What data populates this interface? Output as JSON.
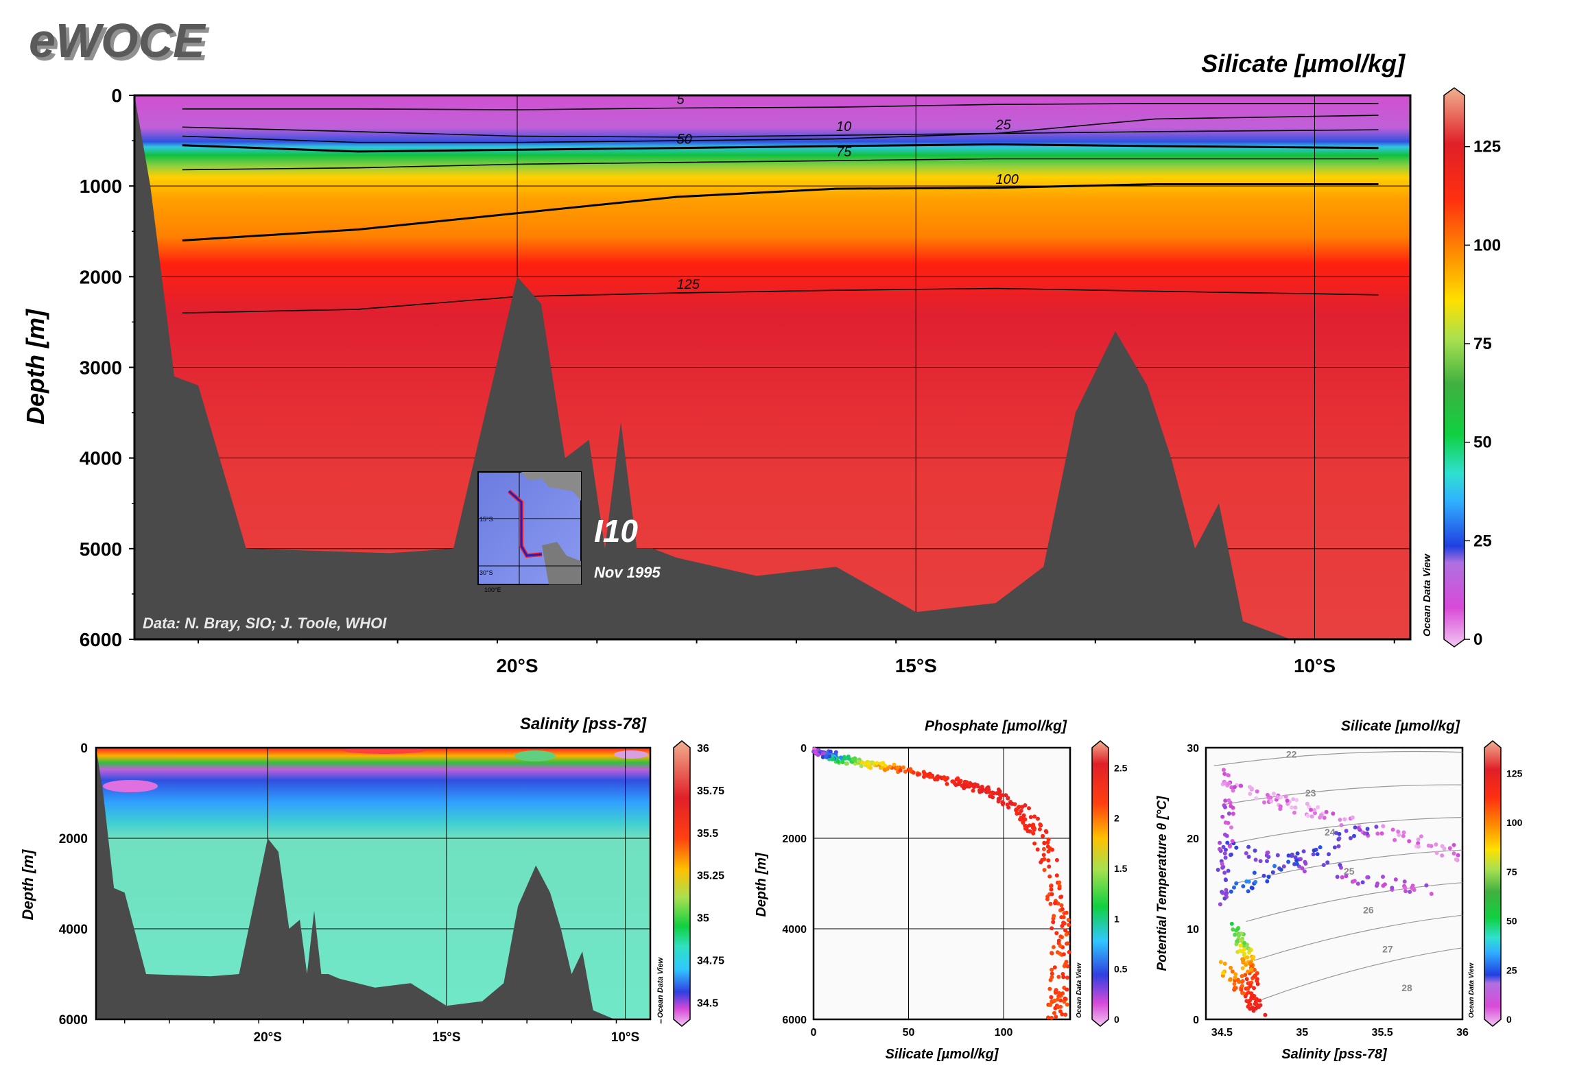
{
  "logo": "eWOCE",
  "main": {
    "title": "Silicate [µmol/kg]",
    "ylabel": "Depth [m]",
    "credit": "Data: N. Bray, SIO; J. Toole, WHOI",
    "section_label": "I10",
    "date_label": "Nov 1995",
    "odv": "Ocean Data View",
    "inset_labels": [
      "15°S",
      "30°S",
      "100°E"
    ]
  },
  "salinity": {
    "title": "Salinity [pss-78]",
    "ylabel": "Depth [m]",
    "odv": "Ocean Data View"
  },
  "phosphate": {
    "title": "Phosphate [µmol/kg]",
    "xlabel": "Silicate [µmol/kg]",
    "ylabel": "Depth [m]",
    "odv": "Ocean Data View"
  },
  "ts": {
    "title": "Silicate [µmol/kg]",
    "xlabel": "Salinity [pss-78]",
    "ylabel": "Potential Temperature θ [°C]",
    "odv": "Ocean Data View",
    "isopycnal_labels": [
      "22",
      "23",
      "24",
      "25",
      "26",
      "27",
      "28"
    ]
  },
  "colors": {
    "seafloor": "#4a4a4a",
    "frame": "#000000"
  },
  "chart_data": [
    {
      "type": "heatmap",
      "title": "Silicate [µmol/kg]",
      "ylabel": "Depth [m]",
      "x_ticks": [
        "20°S",
        "15°S",
        "10°S"
      ],
      "x_tick_values": [
        -20,
        -15,
        -10
      ],
      "xlim": [
        -24.8,
        -8.8
      ],
      "y_ticks": [
        0,
        1000,
        2000,
        3000,
        4000,
        5000,
        6000
      ],
      "ylim": [
        6000,
        0
      ],
      "colorbar": {
        "range": [
          0,
          138
        ],
        "ticks": [
          0,
          25,
          50,
          75,
          100,
          125
        ]
      },
      "contours": [
        {
          "value": 5,
          "depth": [
            150,
            150,
            160,
            140,
            130,
            100,
            90,
            90
          ]
        },
        {
          "value": 10,
          "depth": [
            350,
            400,
            450,
            460,
            440,
            420,
            400,
            380
          ]
        },
        {
          "value": 25,
          "depth": [
            450,
            520,
            520,
            500,
            480,
            420,
            260,
            220
          ]
        },
        {
          "value": 50,
          "depth": [
            550,
            620,
            600,
            580,
            560,
            540,
            560,
            580
          ]
        },
        {
          "value": 75,
          "depth": [
            820,
            800,
            760,
            740,
            720,
            700,
            700,
            700
          ]
        },
        {
          "value": 100,
          "depth": [
            1600,
            1480,
            1300,
            1120,
            1030,
            1020,
            980,
            980
          ]
        },
        {
          "value": 125,
          "depth": [
            2400,
            2360,
            2220,
            2180,
            2150,
            2130,
            2160,
            2200
          ]
        }
      ],
      "contour_x": [
        -24.2,
        -22,
        -20,
        -18,
        -16,
        -14,
        -12,
        -9.2
      ],
      "bathymetry": {
        "lat": [
          -24.8,
          -24.6,
          -24.3,
          -24,
          -23.4,
          -21.6,
          -20.8,
          -20.4,
          -20,
          -19.7,
          -19.4,
          -19.1,
          -18.9,
          -18.7,
          -18.5,
          -18.3,
          -18,
          -17,
          -16,
          -15,
          -14,
          -13.4,
          -13,
          -12.5,
          -12.1,
          -11.8,
          -11.5,
          -11.2,
          -10.9,
          -10.6,
          -10.3,
          -10,
          -9.5,
          -8.8
        ],
        "depth": [
          0,
          1000,
          3100,
          3200,
          5000,
          5050,
          5000,
          3500,
          2000,
          2300,
          4000,
          3800,
          5000,
          3600,
          5000,
          5000,
          5100,
          5300,
          5200,
          5700,
          5600,
          5200,
          3500,
          2600,
          3200,
          4000,
          5000,
          4500,
          5800,
          5900,
          6000,
          6000,
          6000,
          6000
        ]
      }
    },
    {
      "type": "heatmap",
      "title": "Salinity [pss-78]",
      "ylabel": "Depth [m]",
      "x_ticks": [
        "20°S",
        "15°S",
        "10°S"
      ],
      "x_tick_values": [
        -20,
        -15,
        -10
      ],
      "y_ticks": [
        0,
        2000,
        4000,
        6000
      ],
      "ylim": [
        6000,
        0
      ],
      "colorbar": {
        "range": [
          34.4,
          36.0
        ],
        "ticks": [
          34.5,
          34.75,
          35,
          35.25,
          35.5,
          35.75,
          36
        ]
      }
    },
    {
      "type": "scatter",
      "title": "Phosphate [µmol/kg]",
      "xlabel": "Silicate [µmol/kg]",
      "ylabel": "Depth [m]",
      "x_ticks": [
        0,
        50,
        100
      ],
      "xlim": [
        0,
        135
      ],
      "y_ticks": [
        0,
        2000,
        4000,
        6000
      ],
      "ylim": [
        6000,
        0
      ],
      "color_variable": "Phosphate",
      "colorbar": {
        "range": [
          0,
          2.7
        ],
        "ticks": [
          0,
          0.5,
          1,
          1.5,
          2,
          2.5
        ]
      },
      "profile": [
        {
          "x": 3,
          "y": 80,
          "c": 0.2
        },
        {
          "x": 8,
          "y": 150,
          "c": 0.5
        },
        {
          "x": 15,
          "y": 250,
          "c": 1.0
        },
        {
          "x": 25,
          "y": 350,
          "c": 1.5
        },
        {
          "x": 40,
          "y": 450,
          "c": 2.0
        },
        {
          "x": 60,
          "y": 600,
          "c": 2.3
        },
        {
          "x": 80,
          "y": 800,
          "c": 2.4
        },
        {
          "x": 95,
          "y": 1000,
          "c": 2.5
        },
        {
          "x": 110,
          "y": 1400,
          "c": 2.4
        },
        {
          "x": 120,
          "y": 2000,
          "c": 2.3
        },
        {
          "x": 127,
          "y": 3000,
          "c": 2.25
        },
        {
          "x": 130,
          "y": 4000,
          "c": 2.2
        },
        {
          "x": 130,
          "y": 5000,
          "c": 2.2
        },
        {
          "x": 128,
          "y": 6000,
          "c": 2.2
        }
      ]
    },
    {
      "type": "scatter",
      "title": "Silicate [µmol/kg]",
      "xlabel": "Salinity [pss-78]",
      "ylabel": "Potential Temperature θ [°C]",
      "x_ticks": [
        34.5,
        35,
        35.5,
        36
      ],
      "xlim": [
        34.4,
        36.0
      ],
      "y_ticks": [
        0,
        10,
        20,
        30
      ],
      "ylim": [
        0,
        30
      ],
      "color_variable": "Silicate",
      "colorbar": {
        "range": [
          0,
          138
        ],
        "ticks": [
          0,
          25,
          50,
          75,
          100,
          125
        ]
      },
      "isopycnals": [
        "22",
        "23",
        "24",
        "25",
        "26",
        "27",
        "28"
      ]
    }
  ]
}
